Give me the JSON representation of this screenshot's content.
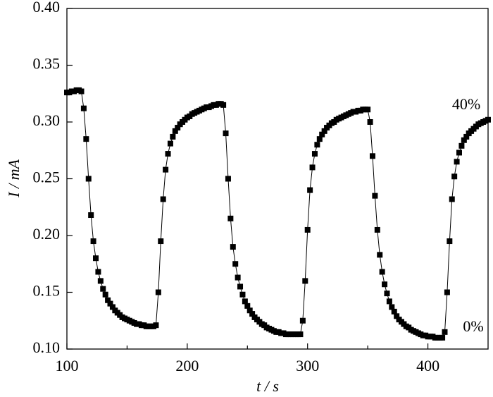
{
  "chart_data": {
    "type": "line",
    "xlabel": "t / s",
    "ylabel": "I / mA",
    "annotations": [
      "40%",
      "0%"
    ],
    "xlim": [
      100,
      450
    ],
    "xticks": [
      100,
      200,
      300,
      400
    ],
    "xminor": [
      150,
      250,
      350
    ],
    "ylim": [
      0.1,
      0.4
    ],
    "yticks": [
      {
        "value": 0.1,
        "label": "0.10"
      },
      0.15,
      {
        "value": 0.2,
        "label": "0.20"
      },
      0.25,
      {
        "value": 0.3,
        "label": "0.30"
      },
      0.35,
      {
        "value": 0.4,
        "label": "0.40"
      }
    ],
    "marker": "square",
    "series": [
      {
        "color": "#000000",
        "x": [
          100,
          102,
          104,
          106,
          108,
          110,
          112,
          114,
          116,
          118,
          120,
          122,
          124,
          126,
          128,
          130,
          132,
          134,
          136,
          138,
          140,
          142,
          144,
          146,
          148,
          150,
          152,
          154,
          156,
          158,
          160,
          162,
          164,
          166,
          168,
          170,
          172,
          174,
          176,
          178,
          180,
          182,
          184,
          186,
          188,
          190,
          192,
          194,
          196,
          198,
          200,
          202,
          204,
          206,
          208,
          210,
          212,
          214,
          216,
          218,
          220,
          222,
          224,
          226,
          228,
          230,
          232,
          234,
          236,
          238,
          240,
          242,
          244,
          246,
          248,
          250,
          252,
          254,
          256,
          258,
          260,
          262,
          264,
          266,
          268,
          270,
          272,
          274,
          276,
          278,
          280,
          282,
          284,
          286,
          288,
          290,
          292,
          294,
          296,
          298,
          300,
          302,
          304,
          306,
          308,
          310,
          312,
          314,
          316,
          318,
          320,
          322,
          324,
          326,
          328,
          330,
          332,
          334,
          336,
          338,
          340,
          342,
          344,
          346,
          348,
          350,
          352,
          354,
          356,
          358,
          360,
          362,
          364,
          366,
          368,
          370,
          372,
          374,
          376,
          378,
          380,
          382,
          384,
          386,
          388,
          390,
          392,
          394,
          396,
          398,
          400,
          402,
          404,
          406,
          408,
          410,
          412,
          414,
          416,
          418,
          420,
          422,
          424,
          426,
          428,
          430,
          432,
          434,
          436,
          438,
          440,
          442,
          444,
          446,
          448,
          450
        ],
        "values": [
          0.326,
          0.326,
          0.327,
          0.327,
          0.328,
          0.328,
          0.327,
          0.312,
          0.285,
          0.25,
          0.218,
          0.195,
          0.18,
          0.168,
          0.16,
          0.153,
          0.148,
          0.143,
          0.14,
          0.137,
          0.134,
          0.132,
          0.13,
          0.128,
          0.127,
          0.126,
          0.125,
          0.124,
          0.123,
          0.122,
          0.122,
          0.121,
          0.121,
          0.12,
          0.12,
          0.12,
          0.12,
          0.121,
          0.15,
          0.195,
          0.232,
          0.258,
          0.272,
          0.281,
          0.287,
          0.292,
          0.295,
          0.298,
          0.3,
          0.302,
          0.304,
          0.305,
          0.307,
          0.308,
          0.309,
          0.31,
          0.311,
          0.312,
          0.313,
          0.313,
          0.314,
          0.315,
          0.315,
          0.316,
          0.316,
          0.315,
          0.29,
          0.25,
          0.215,
          0.19,
          0.175,
          0.163,
          0.155,
          0.148,
          0.142,
          0.138,
          0.134,
          0.131,
          0.128,
          0.126,
          0.124,
          0.122,
          0.121,
          0.119,
          0.118,
          0.117,
          0.116,
          0.115,
          0.115,
          0.114,
          0.114,
          0.113,
          0.113,
          0.113,
          0.113,
          0.113,
          0.113,
          0.113,
          0.125,
          0.16,
          0.205,
          0.24,
          0.26,
          0.272,
          0.28,
          0.285,
          0.289,
          0.292,
          0.295,
          0.297,
          0.299,
          0.3,
          0.302,
          0.303,
          0.304,
          0.305,
          0.306,
          0.307,
          0.308,
          0.309,
          0.309,
          0.31,
          0.31,
          0.311,
          0.311,
          0.311,
          0.3,
          0.27,
          0.235,
          0.205,
          0.183,
          0.168,
          0.157,
          0.149,
          0.142,
          0.137,
          0.133,
          0.129,
          0.126,
          0.124,
          0.122,
          0.12,
          0.119,
          0.117,
          0.116,
          0.115,
          0.114,
          0.113,
          0.112,
          0.112,
          0.111,
          0.111,
          0.111,
          0.11,
          0.11,
          0.11,
          0.11,
          0.115,
          0.15,
          0.195,
          0.232,
          0.252,
          0.265,
          0.273,
          0.279,
          0.284,
          0.287,
          0.29,
          0.292,
          0.294,
          0.296,
          0.298,
          0.299,
          0.3,
          0.301,
          0.302
        ]
      }
    ]
  }
}
